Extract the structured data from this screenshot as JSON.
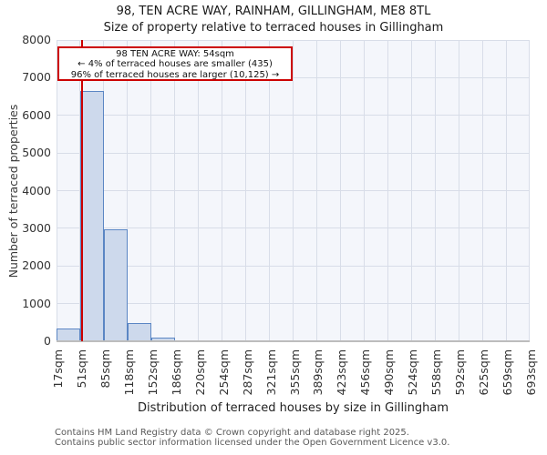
{
  "chart_data": {
    "type": "bar",
    "title": "98, TEN ACRE WAY, RAINHAM, GILLINGHAM, ME8 8TL",
    "subtitle": "Size of property relative to terraced houses in Gillingham",
    "xlabel": "Distribution of terraced houses by size in Gillingham",
    "ylabel": "Number of terraced properties",
    "xlim": [
      17,
      693
    ],
    "ylim": [
      0,
      8000
    ],
    "grid": true,
    "x_tick_labels": [
      "17sqm",
      "51sqm",
      "85sqm",
      "118sqm",
      "152sqm",
      "186sqm",
      "220sqm",
      "254sqm",
      "287sqm",
      "321sqm",
      "355sqm",
      "389sqm",
      "423sqm",
      "456sqm",
      "490sqm",
      "524sqm",
      "558sqm",
      "592sqm",
      "625sqm",
      "659sqm",
      "693sqm"
    ],
    "x_tick_values": [
      17,
      51,
      85,
      118,
      152,
      186,
      220,
      254,
      287,
      321,
      355,
      389,
      423,
      456,
      490,
      524,
      558,
      592,
      625,
      659,
      693
    ],
    "y_ticks": [
      0,
      1000,
      2000,
      3000,
      4000,
      5000,
      6000,
      7000,
      8000
    ],
    "y_tick_labels": [
      "0",
      "1000",
      "2000",
      "3000",
      "4000",
      "5000",
      "6000",
      "7000",
      "8000"
    ],
    "counts": [
      340,
      6650,
      2980,
      490,
      90,
      35,
      0,
      0,
      0,
      0,
      0,
      0,
      0,
      0,
      0,
      0,
      0,
      0,
      0,
      0
    ],
    "marker": {
      "value": 54,
      "label": "54sqm"
    },
    "annotation": {
      "line1": "98 TEN ACRE WAY: 54sqm",
      "line2": "← 4% of terraced houses are smaller (435)",
      "line3": "96% of terraced houses are larger (10,125) →"
    },
    "colors": {
      "bar_fill": "#cdd9ec",
      "bar_border": "#5b86c4",
      "marker": "#cc0000",
      "annotation_border": "#cc0000",
      "grid": "#d8dde8",
      "plot_bg": "#f4f6fb",
      "axis_line": "#bdbdbd"
    }
  },
  "footer": {
    "line1": "Contains HM Land Registry data © Crown copyright and database right 2025.",
    "line2": "Contains public sector information licensed under the Open Government Licence v3.0."
  }
}
